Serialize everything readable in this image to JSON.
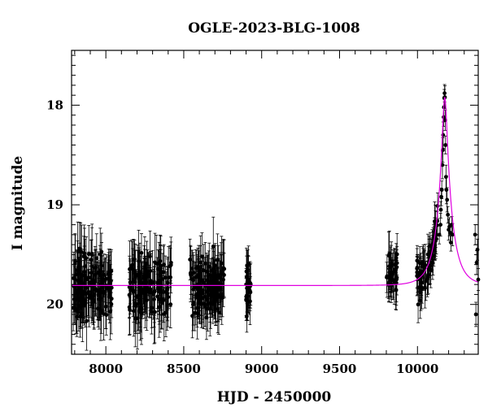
{
  "chart_data": {
    "type": "scatter",
    "title": "OGLE-2023-BLG-1008",
    "xlabel": "HJD - 2450000",
    "ylabel": "I magnitude",
    "xlim": [
      7780,
      10390
    ],
    "ylim": [
      20.5,
      17.45
    ],
    "y_inverted": true,
    "grid": false,
    "x_ticks": [
      8000,
      8500,
      9000,
      9500,
      10000
    ],
    "y_ticks": [
      18,
      19,
      20
    ],
    "model_color": "#e000e0",
    "point_color": "#000000",
    "model": {
      "name": "",
      "baseline_mag": 19.81,
      "t0": 10175,
      "peak_mag": 17.92,
      "u0": 0.164,
      "tE": 90
    },
    "series": [
      {
        "name": "",
        "segments": [
          {
            "x_start": 7790,
            "x_end": 8040,
            "y_center": 19.81,
            "y_spread": 0.3,
            "err": 0.25,
            "count": 150
          },
          {
            "x_start": 8150,
            "x_end": 8420,
            "y_center": 19.83,
            "y_spread": 0.3,
            "err": 0.27,
            "count": 140
          },
          {
            "x_start": 8540,
            "x_end": 8760,
            "y_center": 19.82,
            "y_spread": 0.3,
            "err": 0.25,
            "count": 130
          },
          {
            "x_start": 8900,
            "x_end": 8930,
            "y_center": 19.9,
            "y_spread": 0.25,
            "err": 0.22,
            "count": 30
          },
          {
            "x_start": 9800,
            "x_end": 9870,
            "y_center": 19.72,
            "y_spread": 0.2,
            "err": 0.2,
            "count": 40
          },
          {
            "x_start": 9990,
            "x_end": 10130,
            "y_center": null,
            "y_spread": 0.2,
            "err": 0.18,
            "count": 70
          }
        ],
        "points": [
          [
            10140,
            19.3
          ],
          [
            10148,
            19.2
          ],
          [
            10150,
            19.05
          ],
          [
            10153,
            18.92
          ],
          [
            10156,
            18.85
          ],
          [
            10160,
            18.6
          ],
          [
            10163,
            18.45
          ],
          [
            10165,
            18.3
          ],
          [
            10168,
            18.12
          ],
          [
            10170,
            18.02
          ],
          [
            10172,
            17.93
          ],
          [
            10174,
            17.88
          ],
          [
            10176,
            17.92
          ],
          [
            10178,
            18.15
          ],
          [
            10180,
            18.4
          ],
          [
            10183,
            18.72
          ],
          [
            10186,
            18.85
          ],
          [
            10190,
            18.95
          ],
          [
            10195,
            19.1
          ],
          [
            10200,
            19.25
          ],
          [
            10205,
            19.22
          ],
          [
            10210,
            19.28
          ],
          [
            10215,
            19.38
          ],
          [
            10220,
            19.2
          ],
          [
            10225,
            19.3
          ],
          [
            10370,
            19.3
          ],
          [
            10380,
            19.58
          ],
          [
            10385,
            19.45
          ],
          [
            10375,
            20.1
          ],
          [
            10390,
            19.75
          ]
        ]
      }
    ]
  }
}
